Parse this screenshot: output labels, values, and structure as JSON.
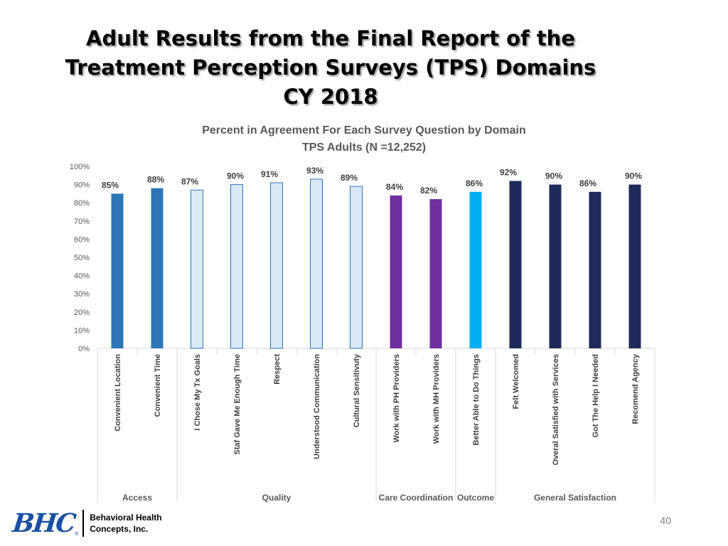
{
  "slide": {
    "title_lines": [
      "Adult Results from the Final Report of the",
      "Treatment Perception Surveys (TPS) Domains",
      "CY 2018"
    ],
    "page_number": "40"
  },
  "logo": {
    "mark": "BHC",
    "registered": "®",
    "text_lines": [
      "Behavioral Health",
      "Concepts, Inc."
    ]
  },
  "chart_data": {
    "type": "bar",
    "title": "Percent in Agreement For Each Survey Question by Domain",
    "subtitle": "TPS Adults (N =12,252)",
    "categories": [
      "Convenient Location",
      "Convenient Time",
      "I Chose My Tx Goals",
      "Staf Gave Me Enough Time",
      "Respect",
      "Understood Communication",
      "Cultural Sensitivuty",
      "Work with PH Providers",
      "Work with MH Providers",
      "Better Able to Do Things",
      "Felt Welcomed",
      "Overal Satisfied  with Services",
      "Got The Help I Needed",
      "Recomend Agency"
    ],
    "values": [
      85,
      88,
      87,
      90,
      91,
      93,
      89,
      84,
      82,
      86,
      92,
      90,
      86,
      90
    ],
    "data_labels": [
      "85%",
      "88%",
      "87%",
      "90%",
      "91%",
      "93%",
      "89%",
      "84%",
      "82%",
      "86%",
      "92%",
      "90%",
      "86%",
      "90%"
    ],
    "groups": [
      {
        "name": "Access",
        "count": 2,
        "color": "#2e75b6",
        "fill_text": "dark"
      },
      {
        "name": "Quality",
        "count": 5,
        "color": "#dae8f7",
        "fill_text": "light"
      },
      {
        "name": "Care Coordination",
        "count": 2,
        "color": "#7030a0",
        "fill_text": "dark"
      },
      {
        "name": "Outcome",
        "count": 1,
        "color": "#00b0f0",
        "fill_text": "dark"
      },
      {
        "name": "General Satisfaction",
        "count": 4,
        "color": "#1f2a5c",
        "fill_text": "dark"
      }
    ],
    "ylim": [
      0,
      100
    ],
    "yticks": [
      "0%",
      "10%",
      "20%",
      "30%",
      "40%",
      "50%",
      "60%",
      "70%",
      "80%",
      "90%",
      "100%"
    ],
    "xlabel": "",
    "ylabel": "",
    "grid": false,
    "legend": "none",
    "colors": {
      "quality_border": "#2e75b6",
      "axis_text": "#595959",
      "title_text": "#595959",
      "label_text": "#404040",
      "axis_line": "#d9d9d9"
    }
  }
}
